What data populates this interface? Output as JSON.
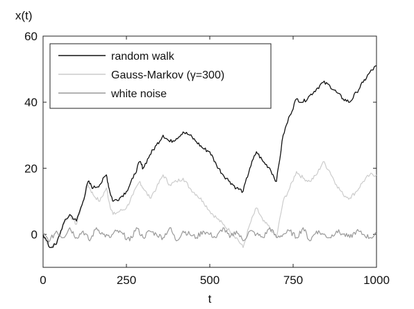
{
  "chart_data": {
    "type": "line",
    "xlabel": "t",
    "ylabel": "x(t)",
    "xlim": [
      0,
      1000
    ],
    "ylim": [
      -10,
      60
    ],
    "xticks": [
      0,
      250,
      500,
      750,
      1000
    ],
    "yticks": [
      0,
      20,
      40,
      60
    ],
    "xtick_labels": [
      "0",
      "250",
      "500",
      "750",
      "1000"
    ],
    "ytick_labels": [
      "0",
      "20",
      "40",
      "60"
    ],
    "grid": false,
    "legend_position": "top-left",
    "series": [
      {
        "name": "random walk",
        "color": "#111111",
        "x": [
          0,
          20,
          40,
          60,
          80,
          100,
          120,
          135,
          150,
          170,
          190,
          200,
          210,
          230,
          250,
          270,
          290,
          300,
          320,
          340,
          360,
          380,
          400,
          420,
          440,
          460,
          480,
          500,
          520,
          540,
          560,
          580,
          600,
          620,
          640,
          660,
          680,
          700,
          720,
          740,
          760,
          780,
          800,
          820,
          840,
          860,
          880,
          900,
          920,
          940,
          960,
          980,
          1000
        ],
        "y": [
          0,
          -4,
          -3,
          3,
          6,
          4,
          10,
          16,
          14,
          15,
          18,
          13,
          10,
          11,
          13,
          17,
          22,
          20,
          24,
          27,
          30,
          28,
          29,
          31,
          30,
          28,
          26,
          25,
          21,
          18,
          16,
          14,
          13,
          20,
          25,
          22,
          20,
          16,
          30,
          36,
          41,
          40,
          42,
          44,
          46,
          45,
          43,
          41,
          40,
          43,
          46,
          49,
          51
        ]
      },
      {
        "name": "Gauss-Markov (γ=300)",
        "color": "#cccccc",
        "x": [
          0,
          20,
          40,
          60,
          80,
          100,
          120,
          135,
          150,
          170,
          190,
          200,
          210,
          230,
          250,
          270,
          290,
          300,
          320,
          340,
          360,
          380,
          400,
          420,
          440,
          460,
          480,
          500,
          520,
          540,
          560,
          580,
          600,
          620,
          640,
          660,
          680,
          700,
          720,
          740,
          760,
          780,
          800,
          820,
          840,
          860,
          880,
          900,
          920,
          940,
          960,
          980,
          1000
        ],
        "y": [
          0,
          -4,
          -3,
          3,
          6,
          3,
          10,
          15,
          12,
          10,
          14,
          9,
          6,
          7,
          8,
          12,
          16,
          14,
          11,
          14,
          18,
          15,
          16,
          17,
          14,
          12,
          10,
          7,
          5,
          3,
          1,
          -1,
          -4,
          3,
          8,
          4,
          2,
          -1,
          10,
          14,
          19,
          17,
          16,
          18,
          22,
          19,
          15,
          12,
          11,
          13,
          16,
          18,
          18
        ]
      },
      {
        "name": "white noise",
        "color": "#999999",
        "x": [
          0,
          20,
          40,
          60,
          80,
          100,
          120,
          140,
          160,
          180,
          200,
          220,
          240,
          260,
          280,
          300,
          320,
          340,
          360,
          380,
          400,
          420,
          440,
          460,
          480,
          500,
          520,
          540,
          560,
          580,
          600,
          620,
          640,
          660,
          680,
          700,
          720,
          740,
          760,
          780,
          800,
          820,
          840,
          860,
          880,
          900,
          920,
          940,
          960,
          980,
          1000
        ],
        "y": [
          0,
          -2,
          1,
          -1,
          2,
          -1,
          1,
          -2,
          2,
          0,
          -1,
          1,
          0,
          -2,
          2,
          -1,
          1,
          0,
          -1,
          2,
          -2,
          1,
          0,
          -1,
          1,
          0,
          -1,
          2,
          -1,
          1,
          -2,
          1,
          0,
          -1,
          2,
          -1,
          0,
          1,
          -1,
          2,
          -2,
          1,
          0,
          -1,
          1,
          0,
          -1,
          1,
          0,
          -1,
          0
        ]
      }
    ]
  }
}
